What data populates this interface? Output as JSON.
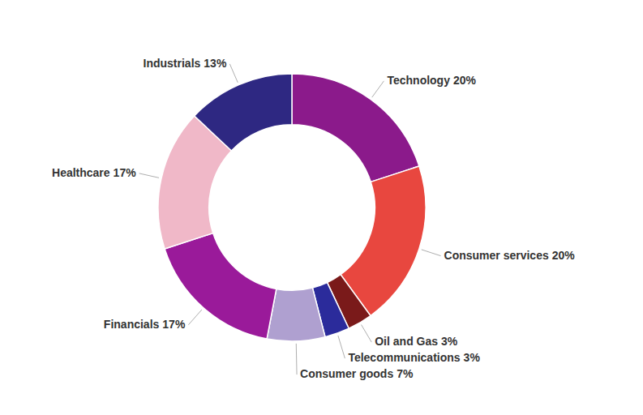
{
  "chart_data": {
    "type": "donut",
    "categories": [
      "Technology",
      "Consumer services",
      "Oil and Gas",
      "Telecommunications",
      "Consumer goods",
      "Financials",
      "Healthcare",
      "Industrials"
    ],
    "values": [
      20,
      20,
      3,
      3,
      7,
      17,
      17,
      13
    ],
    "value_labels": [
      "20%",
      "20%",
      "3%",
      "3%",
      "7%",
      "17%",
      "17%",
      "13%"
    ],
    "colors": [
      "#8B1A8B",
      "#E8473F",
      "#7A1A1A",
      "#2B2B9B",
      "#AFA0D0",
      "#9A1A9A",
      "#F0B8C8",
      "#2E2882"
    ]
  }
}
